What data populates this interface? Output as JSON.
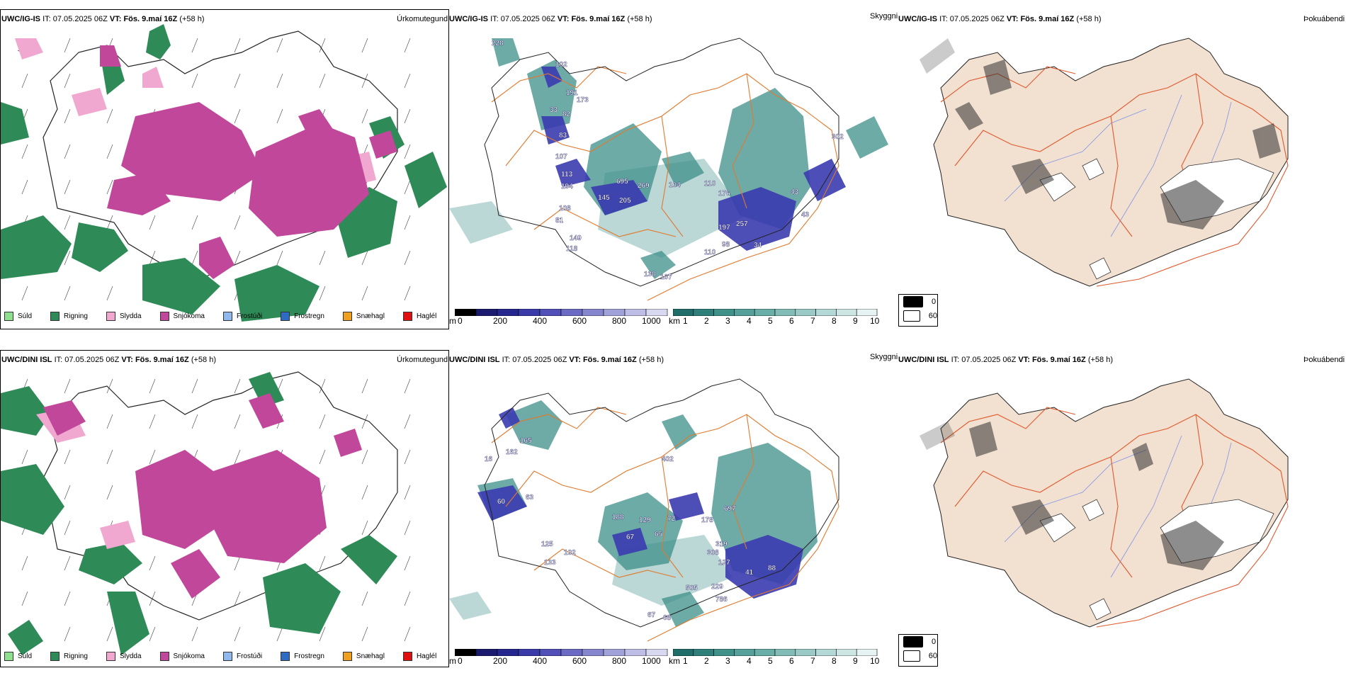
{
  "rows": [
    {
      "model": "UWC/IG-IS",
      "it_label": "IT:",
      "it_value": "07.05.2025 06Z",
      "vt_label": "VT:",
      "vt_value": "Fös. 9.maí 16Z",
      "lead": "(+58 h)"
    },
    {
      "model": "UWC/DINI ISL",
      "it_label": "IT:",
      "it_value": "07.05.2025 06Z",
      "vt_label": "VT:",
      "vt_value": "Fös. 9.maí 16Z",
      "lead": "(+58 h)"
    }
  ],
  "panel_titles": {
    "precip_type": "Úrkomutegund",
    "visibility": "Skyggni",
    "fog": "Þokuábendi"
  },
  "precip_legend": [
    {
      "label": "Súld",
      "color": "#8ee08e"
    },
    {
      "label": "Rigning",
      "color": "#2e8b57"
    },
    {
      "label": "Slydda",
      "color": "#f0a8d0"
    },
    {
      "label": "Snjókoma",
      "color": "#c0479a"
    },
    {
      "label": "Frostúði",
      "color": "#8fb8ec"
    },
    {
      "label": "Frostregn",
      "color": "#2e6cc4"
    },
    {
      "label": "Snæhagl",
      "color": "#f0a020"
    },
    {
      "label": "Haglél",
      "color": "#e01010"
    }
  ],
  "cloudbase_bar": {
    "unit": "m",
    "ticks": [
      "0",
      "200",
      "400",
      "600",
      "800",
      "1000"
    ],
    "colors": [
      "#000000",
      "#1a1a6e",
      "#26268f",
      "#3a3aa8",
      "#5050b8",
      "#6b6bc4",
      "#8686cf",
      "#a2a2da",
      "#bdbde6",
      "#d8d8f0"
    ]
  },
  "visibility_bar": {
    "unit": "km",
    "ticks": [
      "1",
      "2",
      "3",
      "4",
      "5",
      "6",
      "7",
      "8",
      "9",
      "10"
    ],
    "colors": [
      "#1f6e6a",
      "#2f807b",
      "#41918b",
      "#55a09a",
      "#6aaea8",
      "#82bcb7",
      "#9bcac6",
      "#b4d8d5",
      "#cde6e4",
      "#e6f3f2"
    ]
  },
  "fog_legend": [
    {
      "label": "0",
      "color": "#000000"
    },
    {
      "label": "60",
      "color": "#ffffff"
    }
  ],
  "map_labels_top": [
    "228",
    "102",
    "191",
    "173",
    "33",
    "82",
    "83",
    "107",
    "113",
    "194",
    "695",
    "269",
    "104",
    "110",
    "176",
    "145",
    "205",
    "81",
    "108",
    "197",
    "257",
    "43",
    "149",
    "118",
    "98",
    "34",
    "110",
    "138",
    "107",
    "302",
    "43"
  ],
  "map_labels_bottom": [
    "165",
    "162",
    "16",
    "402",
    "63",
    "60",
    "188",
    "129",
    "72",
    "67",
    "65",
    "178",
    "697",
    "319",
    "308",
    "127",
    "41",
    "88",
    "102",
    "133",
    "125",
    "505",
    "229",
    "786",
    "67",
    "68"
  ],
  "colors": {
    "rain": "#2e8b57",
    "snow": "#c0479a",
    "sleet": "#f0a8d0",
    "road": "#e07a2e",
    "land": "#f2e0d0",
    "river": "#7f95e8",
    "vis": "#3d8f8a",
    "lowcloud": "#3b3bb0"
  }
}
